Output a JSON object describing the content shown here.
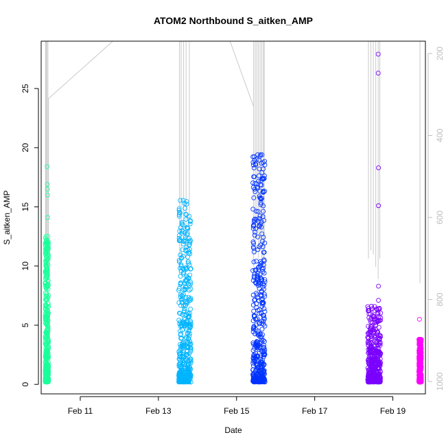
{
  "chart_data": {
    "type": "scatter",
    "title": "ATOM2 Northbound S_aitken_AMP",
    "xlabel": "Date",
    "ylabel": "S_aitken_AMP",
    "x_ticks": [
      "Feb 11",
      "Feb 13",
      "Feb 15",
      "Feb 17",
      "Feb 19"
    ],
    "xlim": [
      "2017-02-10 00:00",
      "2017-02-19 20:00"
    ],
    "ylim": [
      -0.8,
      29
    ],
    "y_ticks": [
      0,
      5,
      10,
      15,
      20,
      25
    ],
    "y2_ticks": [
      200,
      400,
      600,
      800,
      1000
    ],
    "y2lim": [
      1030,
      170
    ],
    "y2_reversed": true,
    "grid": false,
    "marker": "open-circle",
    "series": [
      {
        "color": "#1aff9a",
        "x_range": [
          "2017-02-10 02:30",
          "2017-02-10 04:30"
        ],
        "y_max_bulk": 12.5,
        "outliers": [
          [
            "2017-02-10 03:40",
            18.4
          ],
          [
            "2017-02-10 03:50",
            16.9
          ],
          [
            "2017-02-10 03:50",
            16.5
          ],
          [
            "2017-02-10 03:55",
            16.0
          ],
          [
            "2017-02-10 04:00",
            14.1
          ]
        ]
      },
      {
        "color": "#00b4ff",
        "x_range": [
          "2017-02-13 12:30",
          "2017-02-13 20:00"
        ],
        "y_max_bulk": 15.6,
        "outliers": [
          [
            "2017-02-13 12:50",
            8.1
          ]
        ]
      },
      {
        "color": "#0033ff",
        "x_range": [
          "2017-02-15 10:00",
          "2017-02-15 17:30"
        ],
        "y_max_bulk": 19.4,
        "outliers": [
          [
            "2017-02-15 16:40",
            10.1
          ],
          [
            "2017-02-15 17:00",
            9.4
          ]
        ]
      },
      {
        "color": "#7a00ff",
        "x_range": [
          "2017-02-18 08:30",
          "2017-02-18 16:30"
        ],
        "y_max_bulk": 6.6,
        "outliers": [
          [
            "2017-02-18 15:00",
            27.9
          ],
          [
            "2017-02-18 15:00",
            26.3
          ],
          [
            "2017-02-18 15:10",
            18.3
          ],
          [
            "2017-02-18 15:10",
            15.1
          ],
          [
            "2017-02-18 15:10",
            8.3
          ],
          [
            "2017-02-18 15:10",
            7.1
          ]
        ]
      },
      {
        "color": "#ff00ff",
        "x_range": [
          "2017-02-19 16:00",
          "2017-02-19 17:30"
        ],
        "y_max_bulk": 3.8,
        "outliers": [
          [
            "2017-02-19 16:20",
            5.5
          ]
        ]
      }
    ],
    "secondary_line": {
      "color": "#c8c8c8",
      "description_free": true
    }
  }
}
